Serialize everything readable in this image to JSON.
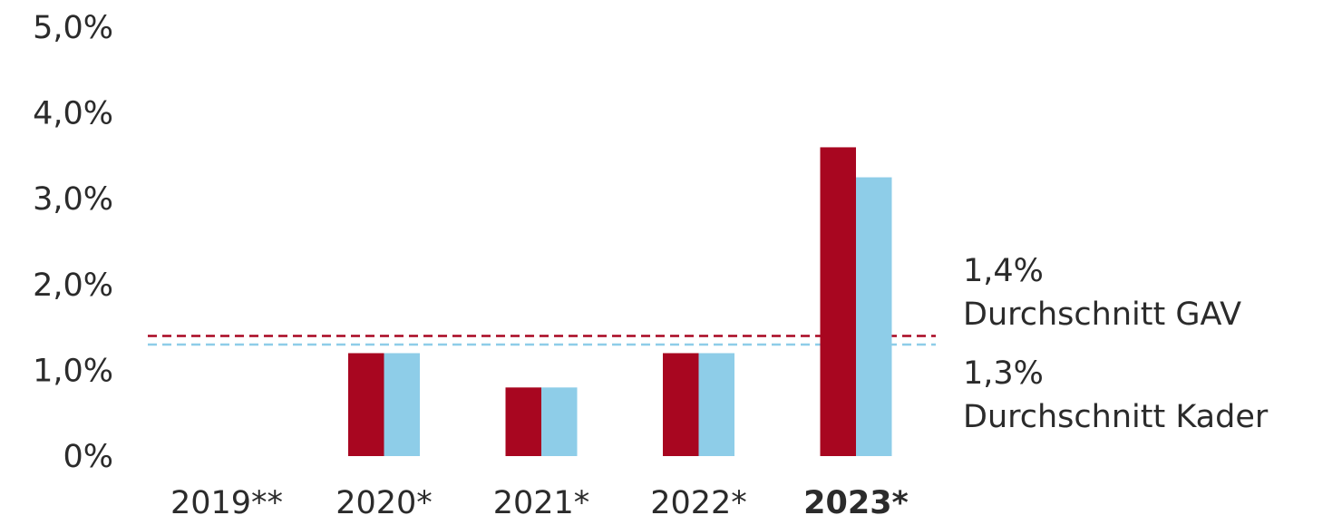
{
  "chart_data": {
    "type": "bar",
    "categories": [
      "2019**",
      "2020*",
      "2021*",
      "2022*",
      "2023*"
    ],
    "highlight_category": "2023*",
    "series": [
      {
        "color": "#A80620",
        "values": [
          0,
          1.2,
          0.8,
          1.2,
          3.6
        ]
      },
      {
        "color": "#8ECDE8",
        "values": [
          0,
          1.2,
          0.8,
          1.2,
          3.25
        ]
      }
    ],
    "yticks": [
      "0%",
      "1,0%",
      "2,0%",
      "3,0%",
      "4,0%",
      "5,0%"
    ],
    "ylim": [
      0,
      5
    ],
    "reference_lines": [
      {
        "value": 1.4,
        "color": "#A80620",
        "style": "dashed",
        "label_value": "1,4%",
        "label_text": "Durchschnitt GAV"
      },
      {
        "value": 1.3,
        "color": "#8ECDE8",
        "style": "dashed",
        "label_value": "1,3%",
        "label_text": "Durchschnitt Kader"
      }
    ],
    "grid": false,
    "legend": "none"
  }
}
